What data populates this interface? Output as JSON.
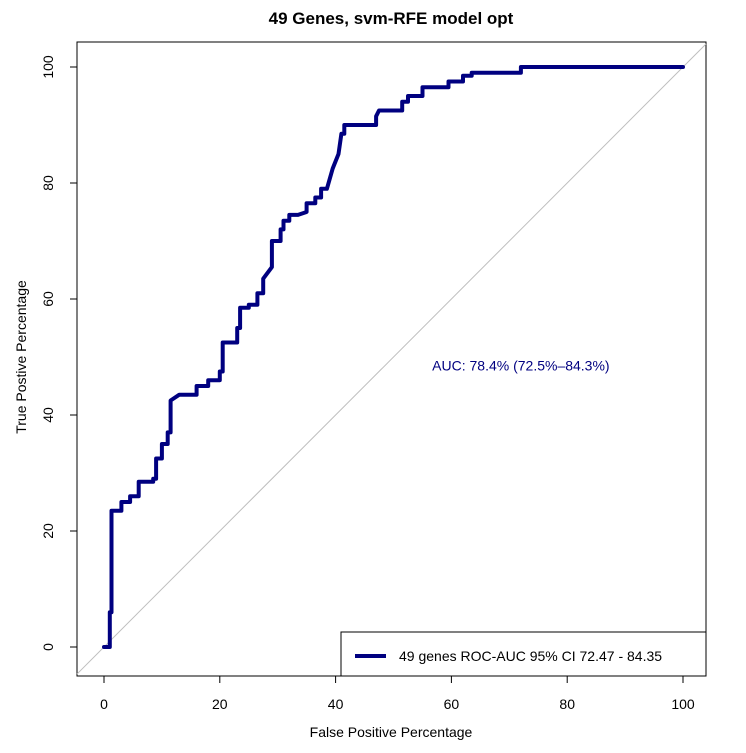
{
  "chart_data": {
    "type": "line",
    "title": "49 Genes, svm-RFE model opt",
    "xlabel": "False Positive Percentage",
    "ylabel": "True Postive Percentage",
    "xlim": [
      0,
      100
    ],
    "ylim": [
      0,
      100
    ],
    "x_ticks": [
      "0",
      "20",
      "40",
      "60",
      "80",
      "100"
    ],
    "y_ticks": [
      "0",
      "20",
      "40",
      "60",
      "80",
      "100"
    ],
    "grid": false,
    "legend_position": "bottom-right",
    "reference_line": {
      "from": [
        0,
        0
      ],
      "to": [
        100,
        100
      ],
      "color": "#bebebe"
    },
    "annotation": {
      "text": "AUC: 78.4% (72.5%–84.3%)",
      "x": 72,
      "y": 48.5,
      "color": "#000080"
    },
    "series": [
      {
        "name": "49 genes ROC-AUC 95% CI  72.47 - 84.35",
        "color": "#000080",
        "x": [
          0,
          1,
          1,
          1.3,
          1.3,
          3,
          3,
          4.5,
          4.5,
          6,
          6,
          8.5,
          8.5,
          9,
          9,
          10,
          10,
          11,
          11,
          11.5,
          11.5,
          13,
          16,
          16,
          18,
          18,
          20,
          20,
          20.5,
          20.5,
          23,
          23,
          23.5,
          23.5,
          25,
          25,
          26.5,
          26.5,
          27.5,
          27.5,
          29,
          29,
          30.5,
          30.5,
          31,
          31,
          32,
          32,
          33.5,
          35,
          35,
          36.5,
          36.5,
          37.5,
          37.5,
          38.5,
          39.5,
          39.5,
          40.5,
          40.5,
          41,
          41.5,
          41.5,
          42.5,
          47,
          47,
          47.5,
          51.5,
          51.5,
          52.5,
          52.5,
          55,
          55,
          59.5,
          59.5,
          62,
          62,
          63.5,
          63.5,
          72,
          72,
          100
        ],
        "y": [
          0,
          0,
          6,
          6,
          23.5,
          23.5,
          25,
          25,
          26,
          26,
          28.5,
          28.5,
          29,
          29,
          32.5,
          32.5,
          35,
          35,
          37,
          37,
          42.5,
          43.5,
          43.5,
          45,
          45,
          46,
          46,
          47.5,
          47.5,
          52.5,
          52.5,
          55,
          55,
          58.5,
          58.5,
          59,
          59,
          61,
          61,
          63.5,
          65.5,
          70,
          70,
          72,
          72,
          73.5,
          73.5,
          74.5,
          74.5,
          75,
          76.5,
          76.5,
          77.5,
          77.5,
          79,
          79,
          82.5,
          82.5,
          85,
          85,
          88.5,
          88.5,
          90,
          90,
          90,
          91.5,
          92.5,
          92.5,
          94,
          94,
          95,
          95,
          96.5,
          96.5,
          97.5,
          97.5,
          98.5,
          98.5,
          99,
          99,
          100,
          100
        ]
      }
    ]
  }
}
